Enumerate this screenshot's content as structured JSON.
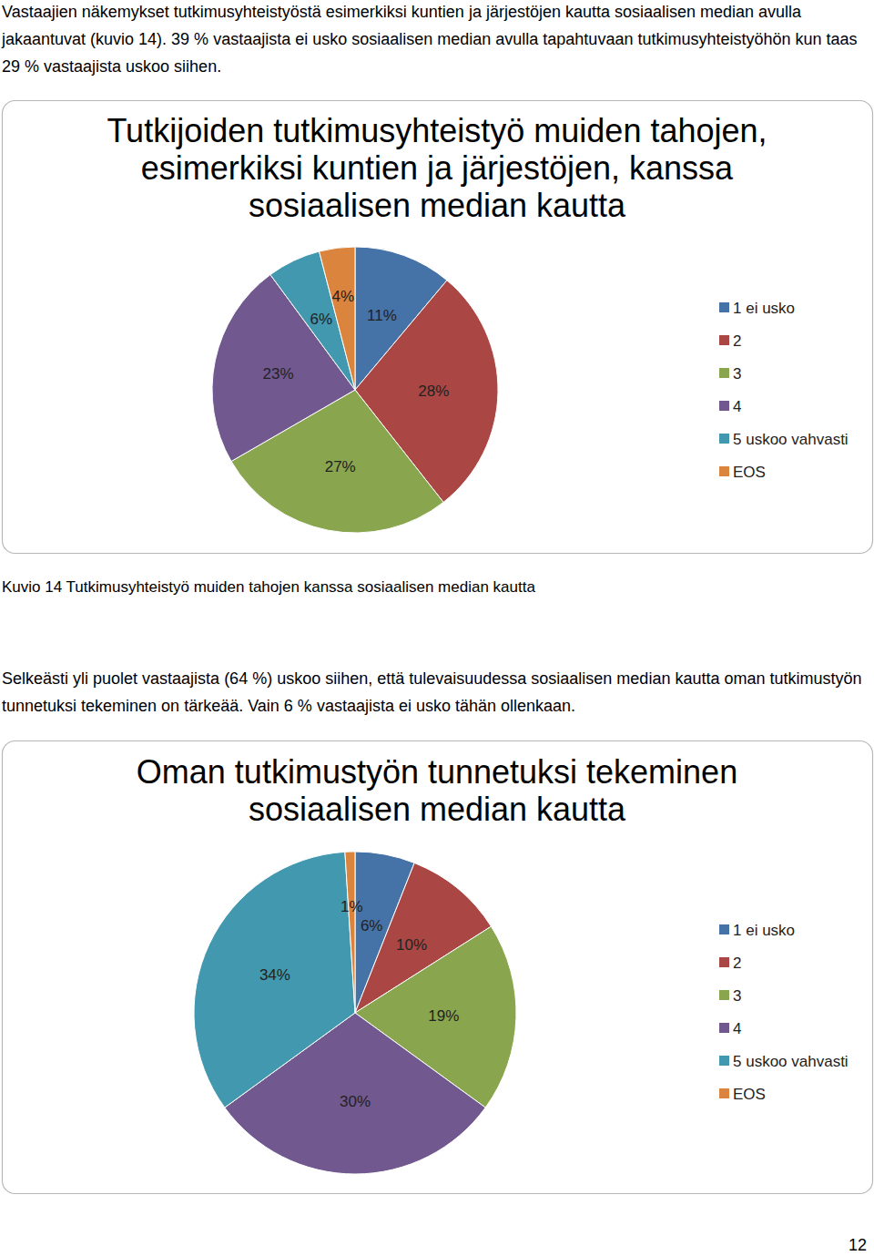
{
  "document": {
    "paragraphs": [
      "Vastaajien näkemykset tutkimusyhteistyöstä esimerkiksi kuntien ja järjestöjen kautta sosiaalisen median avulla jakaantuvat (kuvio 14). 39 % vastaajista ei usko sosiaalisen median avulla tapahtuvaan tutkimusyhteistyöhön kun taas 29 % vastaajista uskoo siihen.",
      "Selkeästi yli puolet vastaajista (64 %) uskoo siihen, että tulevaisuudessa sosiaalisen median kautta oman tutkimustyön tunnetuksi tekeminen on tärkeää. Vain 6 % vastaajista ei usko tähän ollenkaan."
    ],
    "caption": "Kuvio 14 Tutkimusyhteistyö muiden tahojen kanssa sosiaalisen median kautta",
    "page_number": 12
  },
  "chart_data": [
    {
      "type": "pie",
      "title": "Tutkijoiden tutkimusyhteistyö muiden tahojen, esimerkiksi kuntien ja järjestöjen, kanssa sosiaalisen median kautta",
      "categories": [
        "1 ei usko",
        "2",
        "3",
        "4",
        "5 uskoo vahvasti",
        "EOS"
      ],
      "values": [
        11,
        28,
        27,
        23,
        6,
        4
      ],
      "value_labels": [
        "11%",
        "28%",
        "27%",
        "23%",
        "6%",
        "4%"
      ],
      "colors": [
        "#4572a7",
        "#aa4643",
        "#89a54e",
        "#71588f",
        "#4198af",
        "#db843d"
      ],
      "data_labels": true,
      "legend": "right"
    },
    {
      "type": "pie",
      "title": "Oman tutkimustyön tunnetuksi tekeminen sosiaalisen median kautta",
      "categories": [
        "1 ei usko",
        "2",
        "3",
        "4",
        "5 uskoo vahvasti",
        "EOS"
      ],
      "values": [
        6,
        10,
        19,
        30,
        34,
        1
      ],
      "value_labels": [
        "6%",
        "10%",
        "19%",
        "30%",
        "34%",
        "1%"
      ],
      "colors": [
        "#4572a7",
        "#aa4643",
        "#89a54e",
        "#71588f",
        "#4198af",
        "#db843d"
      ],
      "data_labels": true,
      "legend": "right"
    }
  ]
}
